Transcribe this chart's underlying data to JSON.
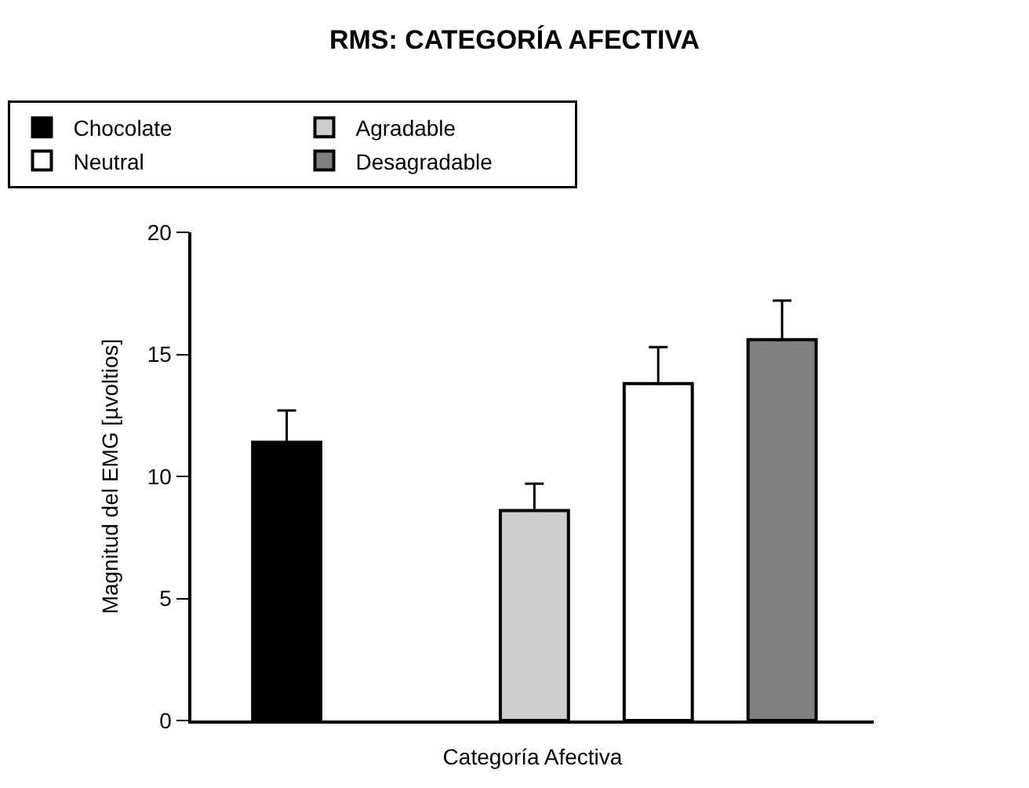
{
  "chart_data": {
    "type": "bar",
    "title": "RMS: CATEGORÍA AFECTIVA",
    "xlabel": "Categoría Afectiva",
    "ylabel": "Magnitud del EMG [µvoltios]",
    "categories": [
      null,
      null,
      null,
      null,
      null
    ],
    "series": [
      {
        "name": "Chocolate",
        "color": "#000000",
        "values": [
          11.4,
          null,
          null,
          null,
          null
        ],
        "errors": [
          [
            11.4,
            12.7
          ],
          null,
          null,
          null,
          null
        ]
      },
      {
        "name": "Agradable",
        "color": "#cccccc",
        "values": [
          null,
          null,
          8.6,
          null,
          null
        ],
        "errors": [
          null,
          null,
          [
            8.6,
            9.7
          ],
          null,
          null
        ]
      },
      {
        "name": "Neutral",
        "color": "#ffffff",
        "values": [
          null,
          null,
          null,
          13.8,
          null
        ],
        "errors": [
          null,
          null,
          null,
          [
            13.8,
            15.3
          ],
          null
        ]
      },
      {
        "name": "Desagradable",
        "color": "#808080",
        "values": [
          null,
          null,
          null,
          null,
          15.6
        ],
        "errors": [
          null,
          null,
          null,
          null,
          [
            15.6,
            17.2
          ]
        ]
      }
    ],
    "ylim": [
      0,
      20
    ],
    "yticks": [
      0,
      5,
      10,
      15,
      20
    ],
    "legend": "top"
  }
}
